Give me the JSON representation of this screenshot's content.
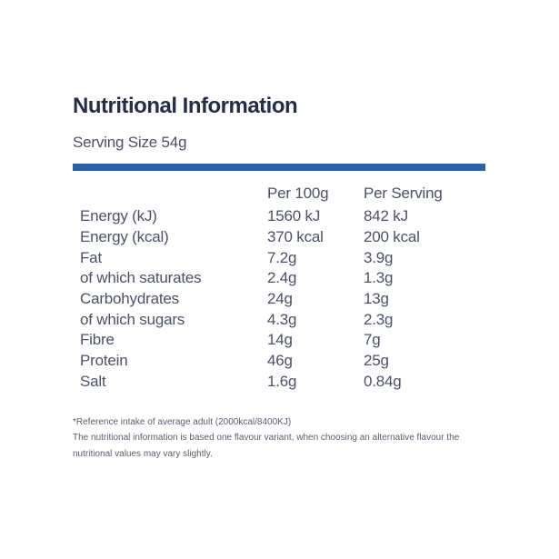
{
  "header": {
    "title": "Nutritional Information",
    "serving_size": "Serving Size 54g"
  },
  "table": {
    "column_headers": [
      "Per 100g",
      "Per Serving"
    ],
    "rows": [
      {
        "label": "Energy (kJ)",
        "per_100g": "1560 kJ",
        "per_serving": "842 kJ"
      },
      {
        "label": "Energy (kcal)",
        "per_100g": "370 kcal",
        "per_serving": "200 kcal"
      },
      {
        "label": "Fat",
        "per_100g": "7.2g",
        "per_serving": "3.9g"
      },
      {
        "label": "of which saturates",
        "per_100g": "2.4g",
        "per_serving": "1.3g"
      },
      {
        "label": "Carbohydrates",
        "per_100g": "24g",
        "per_serving": "13g"
      },
      {
        "label": "of which sugars",
        "per_100g": "4.3g",
        "per_serving": "2.3g"
      },
      {
        "label": "Fibre",
        "per_100g": "14g",
        "per_serving": "7g"
      },
      {
        "label": "Protein",
        "per_100g": "46g",
        "per_serving": "25g"
      },
      {
        "label": "Salt",
        "per_100g": "1.6g",
        "per_serving": "0.84g"
      }
    ]
  },
  "footnotes": {
    "reference_intake": "*Reference intake of average adult (2000kcal/8400KJ)",
    "variant_note_line1": "The nutritional information is based one flavour variant, when choosing an alternative flavour the",
    "variant_note_line2": "nutritional values may vary slightly."
  },
  "colors": {
    "background": "#ffffff",
    "title_text": "#232d49",
    "body_text": "#4a5268",
    "footnote_text": "#575e70",
    "accent_bar": "#2a5fa9"
  }
}
